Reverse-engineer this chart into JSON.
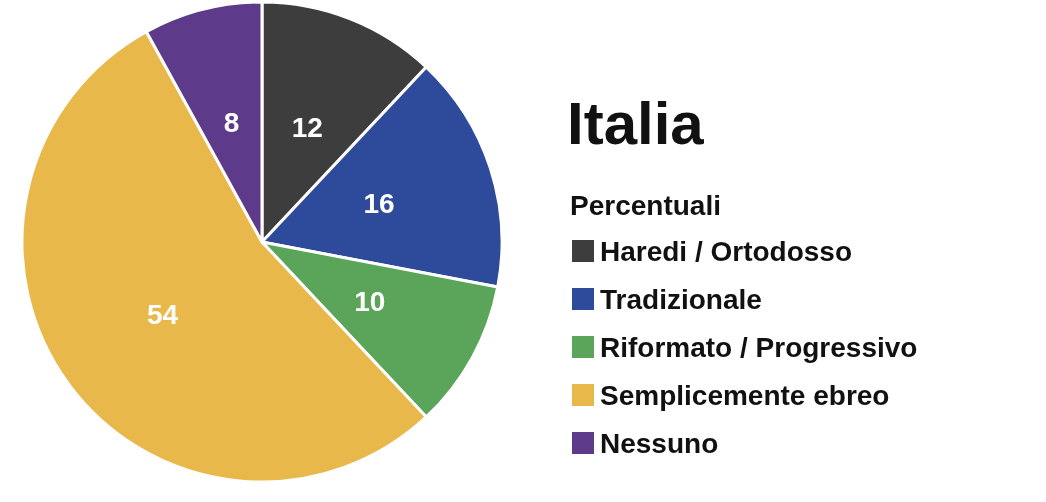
{
  "chart_data": {
    "type": "pie",
    "title": "Italia",
    "legend_title": "Percentuali",
    "categories": [
      "Haredi / Ortodosso",
      "Tradizionale",
      "Riformato / Progressivo",
      "Semplicemente ebreo",
      "Nessuno"
    ],
    "values": [
      12,
      16,
      10,
      54,
      8
    ],
    "colors": [
      "#3d3d3d",
      "#2e4a9a",
      "#5aa55a",
      "#e8b84a",
      "#5e3a8a"
    ],
    "data_labels": true,
    "legend": "right"
  }
}
